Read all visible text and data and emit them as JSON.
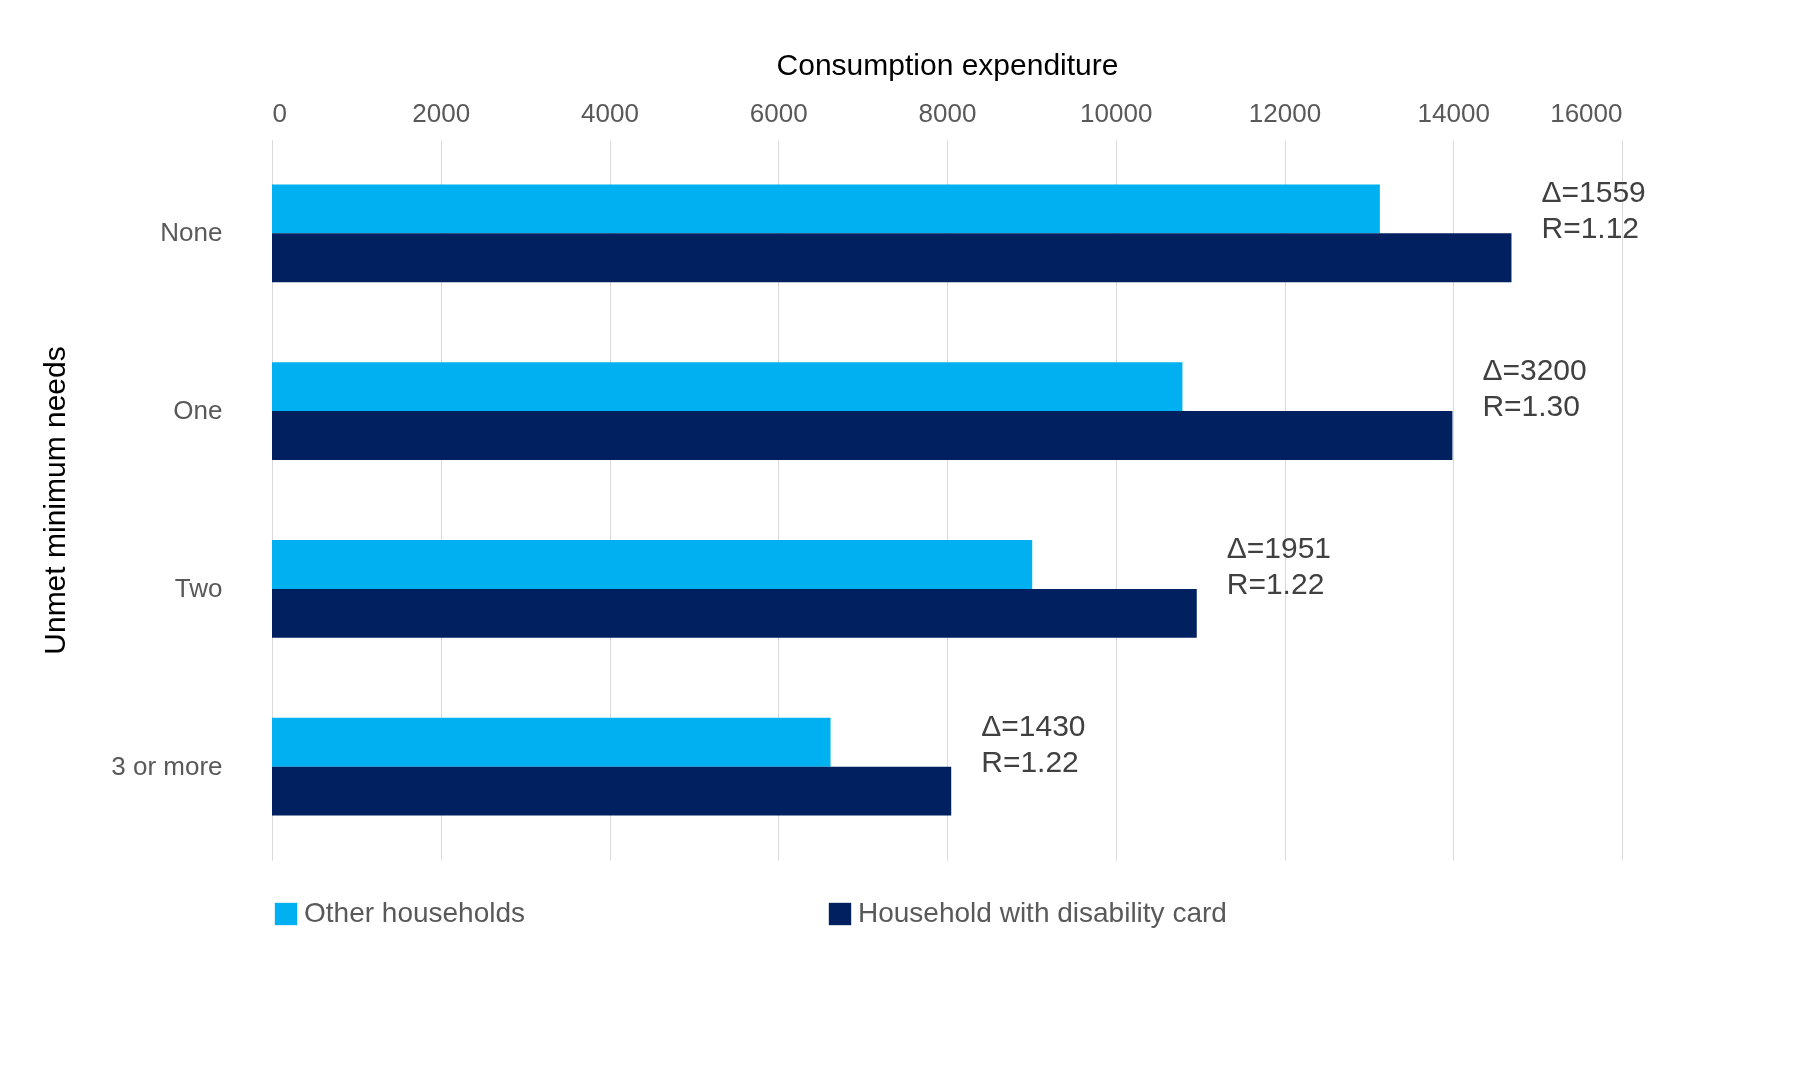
{
  "chart_data": {
    "type": "bar",
    "orientation": "horizontal",
    "xlabel": "Consumption expenditure",
    "ylabel": "Unmet minimum needs",
    "categories": [
      "None",
      "One",
      "Two",
      "3 or more"
    ],
    "series": [
      {
        "name": "Other households",
        "color": "#00b0f0",
        "values": [
          13130,
          10790,
          9010,
          6620
        ]
      },
      {
        "name": "Household with disability card",
        "color": "#002060",
        "values": [
          14690,
          13990,
          10960,
          8050
        ]
      }
    ],
    "xlim": [
      0,
      16000
    ],
    "xticks": [
      0,
      2000,
      4000,
      6000,
      8000,
      10000,
      12000,
      14000,
      16000
    ],
    "grid": "x",
    "legend": "bottom",
    "annotations": [
      "Δ=1559\nR=1.12",
      "Δ=3200\nR=1.30",
      "Δ=1951\nR=1.22",
      "Δ=1430\nR=1.22"
    ]
  }
}
